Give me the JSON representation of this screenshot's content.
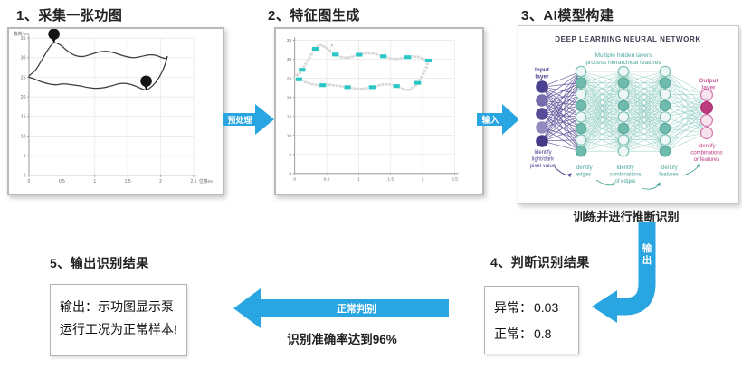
{
  "colors": {
    "arrow_blue": "#29a5e2",
    "curve_dark": "#3c3c3c",
    "feature_teal": "#2cc5c5",
    "feature_gray": "#d8d8d8",
    "nn_purple": "#4a4090",
    "nn_teal": "#6fbcae",
    "nn_teal_text": "#4ea79a",
    "nn_pink": "#bf3b80",
    "grid": "#e6e6e6",
    "axis": "#999999"
  },
  "steps": {
    "step1_title": "1、采集一张功图",
    "step2_title": "2、特征图生成",
    "step3_title": "3、AI模型构建",
    "step4_title": "4、判断识别结果",
    "step5_title": "5、输出识别结果"
  },
  "arrows": {
    "preprocess_label": "预处理",
    "input_label": "输入",
    "output_label": "输出",
    "normal_judge_label": "正常判别"
  },
  "captions": {
    "train_caption": "训练并进行推断识别",
    "accuracy_caption": "识别准确率达到96%"
  },
  "result_box": {
    "rows": [
      {
        "label": "异常：",
        "value": "0.03"
      },
      {
        "label": "正常：",
        "value": "0.8"
      }
    ]
  },
  "output_box": {
    "line1": "输出：示功图显示泵",
    "line2": "运行工况为正常样本!"
  },
  "chart_data": [
    {
      "type": "line",
      "name": "dynamometer-card",
      "xlabel": "位移/m",
      "ylabel": "载荷/kN",
      "xlim": [
        0,
        2.5
      ],
      "ylim": [
        0,
        35
      ],
      "xticks": [
        0,
        0.5,
        1,
        1.5,
        2,
        2.5
      ],
      "yticks": [
        0,
        5,
        10,
        15,
        20,
        25,
        30,
        35
      ],
      "grid": true,
      "loop": [
        [
          0.0,
          25.2
        ],
        [
          0.1,
          26.8
        ],
        [
          0.2,
          29.5
        ],
        [
          0.3,
          32.3
        ],
        [
          0.38,
          33.8
        ],
        [
          0.48,
          33.2
        ],
        [
          0.58,
          31.8
        ],
        [
          0.7,
          30.6
        ],
        [
          0.82,
          30.3
        ],
        [
          0.95,
          30.9
        ],
        [
          1.08,
          31.5
        ],
        [
          1.2,
          31.6
        ],
        [
          1.32,
          31.1
        ],
        [
          1.45,
          30.4
        ],
        [
          1.58,
          30.0
        ],
        [
          1.7,
          30.3
        ],
        [
          1.82,
          30.7
        ],
        [
          1.93,
          30.6
        ],
        [
          2.02,
          30.0
        ],
        [
          2.08,
          29.8
        ],
        [
          2.1,
          30.2
        ],
        [
          2.05,
          27.5
        ],
        [
          1.97,
          24.8
        ],
        [
          1.88,
          22.9
        ],
        [
          1.78,
          21.8
        ],
        [
          1.68,
          22.3
        ],
        [
          1.58,
          23.0
        ],
        [
          1.48,
          23.4
        ],
        [
          1.38,
          23.4
        ],
        [
          1.27,
          22.9
        ],
        [
          1.15,
          22.4
        ],
        [
          1.02,
          22.2
        ],
        [
          0.9,
          22.4
        ],
        [
          0.78,
          22.8
        ],
        [
          0.65,
          23.1
        ],
        [
          0.52,
          23.3
        ],
        [
          0.4,
          23.1
        ],
        [
          0.28,
          23.4
        ],
        [
          0.18,
          23.9
        ],
        [
          0.08,
          24.6
        ]
      ],
      "pins": [
        [
          0.38,
          33.8
        ],
        [
          1.78,
          21.8
        ]
      ]
    },
    {
      "type": "scatter",
      "name": "feature-map",
      "xlim": [
        0,
        2.5
      ],
      "ylim": [
        0,
        35
      ],
      "xticks": [
        0,
        0.5,
        1,
        1.5,
        2,
        2.5
      ],
      "yticks": [
        0,
        5,
        10,
        15,
        20,
        25,
        30,
        35
      ],
      "grid": true,
      "path_marker_color": "#d8d8d8",
      "feature_marker_color": "#2cc5c5",
      "feature_every": 7,
      "x_marker": [
        0.58,
        33.2
      ]
    }
  ],
  "neural_network": {
    "header": "DEEP LEARNING NEURAL NETWORK",
    "subtitle_lines": [
      "Multiple hidden layers",
      "process hierarchical features"
    ],
    "input_label_lines": [
      "Input",
      "layer"
    ],
    "output_label_lines": [
      "Output",
      "layer"
    ],
    "annotations": [
      {
        "lines": [
          "Identify",
          "light/dark",
          "pixel value"
        ],
        "color": "purple"
      },
      {
        "lines": [
          "Identify",
          "edges"
        ],
        "color": "teal"
      },
      {
        "lines": [
          "Identify",
          "combinations",
          "of edges"
        ],
        "color": "teal"
      },
      {
        "lines": [
          "Identify",
          "features"
        ],
        "color": "teal"
      },
      {
        "lines": [
          "Identify",
          "combinations",
          "or features"
        ],
        "color": "pink"
      }
    ],
    "layers": [
      {
        "type": "input",
        "count": 5,
        "node_colors": [
          "#4a4090",
          "#756cab",
          "#554b97",
          "#948cc0",
          "#443a88"
        ]
      },
      {
        "type": "hidden",
        "count": 8,
        "pattern": [
          "l",
          "s",
          "l",
          "s",
          "l",
          "s",
          "l",
          "s"
        ]
      },
      {
        "type": "hidden",
        "count": 8,
        "pattern": [
          "l",
          "s",
          "l",
          "s",
          "l",
          "s",
          "l",
          "l"
        ]
      },
      {
        "type": "hidden",
        "count": 8,
        "pattern": [
          "l",
          "s",
          "l",
          "s",
          "l",
          "s",
          "l",
          "s"
        ]
      },
      {
        "type": "output",
        "count": 4,
        "pattern": [
          "l",
          "s",
          "l",
          "l"
        ]
      }
    ]
  }
}
